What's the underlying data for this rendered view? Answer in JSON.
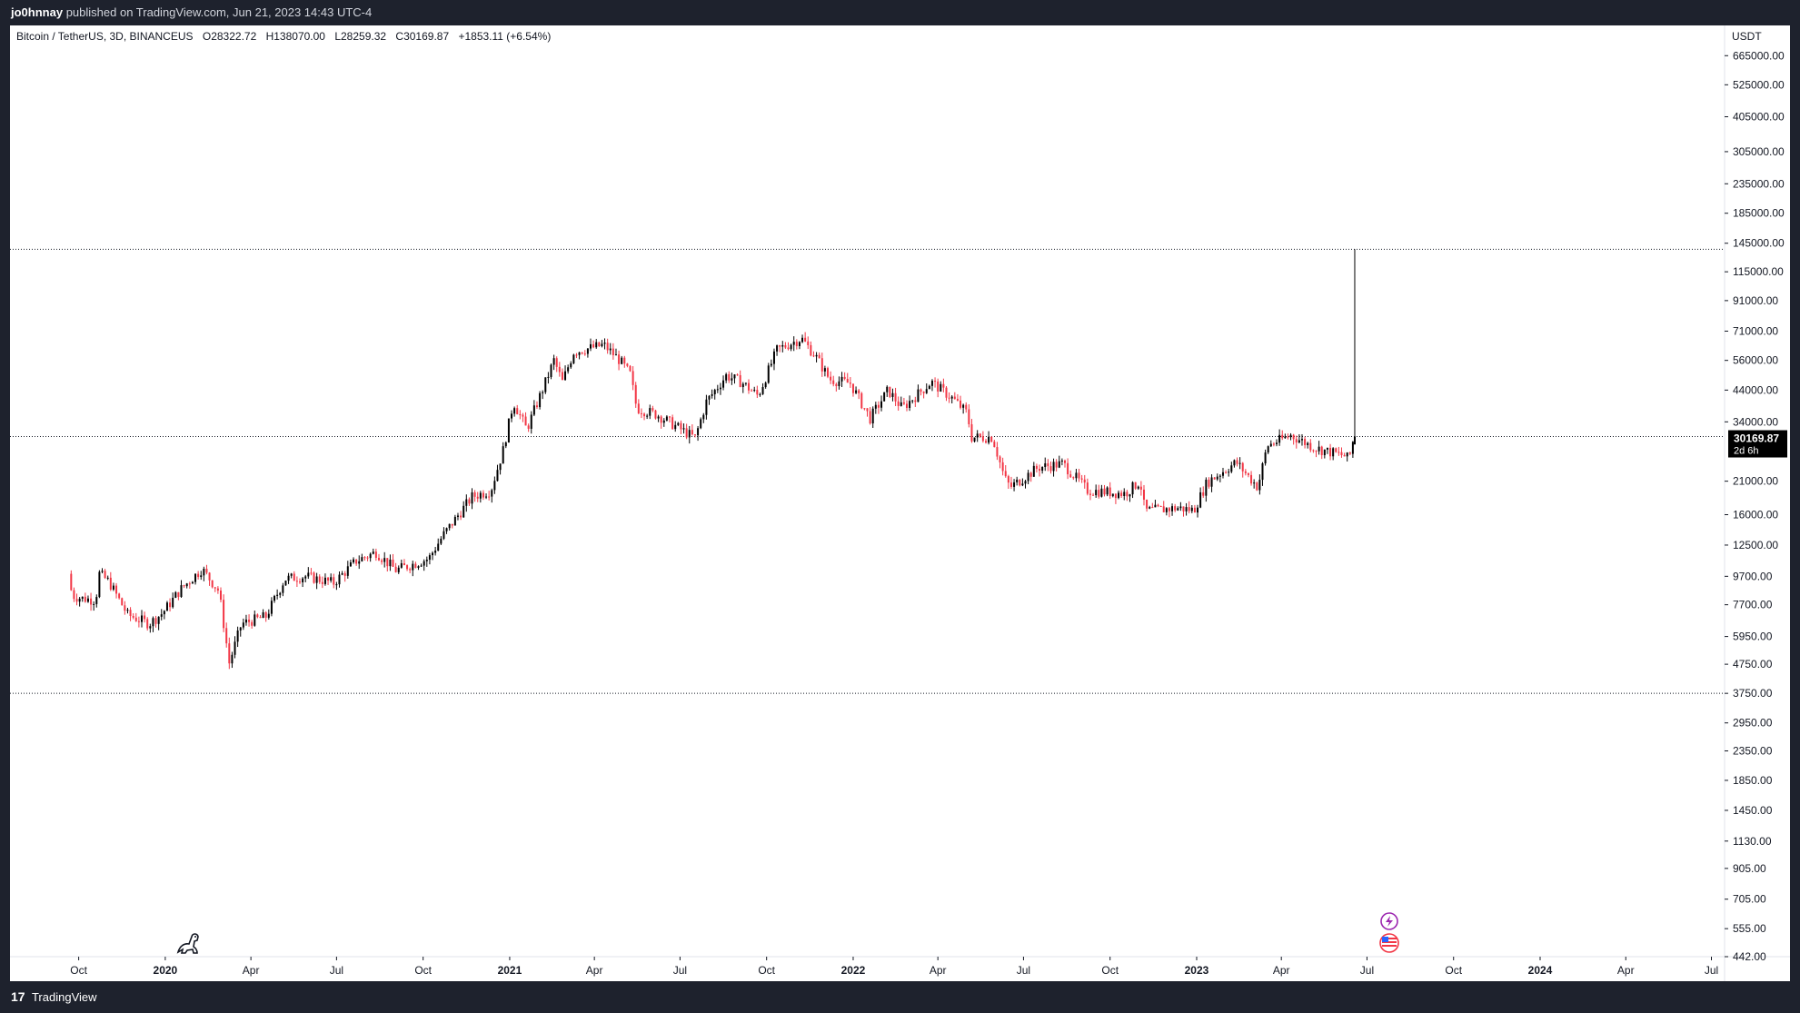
{
  "header": {
    "author": "jo0hnnay",
    "published_text": "published on TradingView.com, Jun 21, 2023 14:43 UTC-4"
  },
  "legend": {
    "symbol": "Bitcoin / TetherUS, 3D, BINANCEUS",
    "open": "O28322.72",
    "high": "H138070.00",
    "low": "L28259.32",
    "close": "C30169.87",
    "change": "+1853.11 (+6.54%)"
  },
  "price_axis": {
    "currency": "USDT",
    "last_price_label": "30169.87",
    "countdown": "2d 6h"
  },
  "footer": {
    "brand_mark": "17",
    "brand": "TradingView"
  },
  "colors": {
    "up": "#000000",
    "down": "#f23645",
    "last_price_bg": "#000000",
    "line": "#000000"
  },
  "chart_data": {
    "type": "candlestick",
    "scale": "log",
    "ylim": [
      442,
      850000
    ],
    "xlim": [
      "2019-07-20",
      "2024-07-15"
    ],
    "y_ticks": [
      665000,
      525000,
      405000,
      305000,
      235000,
      185000,
      145000,
      115000,
      91000,
      71000,
      56000,
      44000,
      34000,
      21000,
      16000,
      12500,
      9700,
      7700,
      5950,
      4750,
      3750,
      2950,
      2350,
      1850,
      1450,
      1130,
      905,
      705,
      555,
      442
    ],
    "x_ticks": [
      {
        "date": "2019-10-01",
        "label": "Oct",
        "bold": false
      },
      {
        "date": "2020-01-01",
        "label": "2020",
        "bold": true
      },
      {
        "date": "2020-04-01",
        "label": "Apr",
        "bold": false
      },
      {
        "date": "2020-07-01",
        "label": "Jul",
        "bold": false
      },
      {
        "date": "2020-10-01",
        "label": "Oct",
        "bold": false
      },
      {
        "date": "2021-01-01",
        "label": "2021",
        "bold": true
      },
      {
        "date": "2021-04-01",
        "label": "Apr",
        "bold": false
      },
      {
        "date": "2021-07-01",
        "label": "Jul",
        "bold": false
      },
      {
        "date": "2021-10-01",
        "label": "Oct",
        "bold": false
      },
      {
        "date": "2022-01-01",
        "label": "2022",
        "bold": true
      },
      {
        "date": "2022-04-01",
        "label": "Apr",
        "bold": false
      },
      {
        "date": "2022-07-01",
        "label": "Jul",
        "bold": false
      },
      {
        "date": "2022-10-01",
        "label": "Oct",
        "bold": false
      },
      {
        "date": "2023-01-01",
        "label": "2023",
        "bold": true
      },
      {
        "date": "2023-04-01",
        "label": "Apr",
        "bold": false
      },
      {
        "date": "2023-07-01",
        "label": "Jul",
        "bold": false
      },
      {
        "date": "2023-10-01",
        "label": "Oct",
        "bold": false
      },
      {
        "date": "2024-01-01",
        "label": "2024",
        "bold": true
      },
      {
        "date": "2024-04-01",
        "label": "Apr",
        "bold": false
      },
      {
        "date": "2024-07-01",
        "label": "Jul",
        "bold": false
      }
    ],
    "horizontal_lines": [
      138070,
      30169.87,
      3750
    ],
    "candle_interval_days": 3,
    "approx_close_path": [
      [
        "2019-09-23",
        9900
      ],
      [
        "2019-09-27",
        8300
      ],
      [
        "2019-10-08",
        8100
      ],
      [
        "2019-10-22",
        8000
      ],
      [
        "2019-10-26",
        9900
      ],
      [
        "2019-11-05",
        9300
      ],
      [
        "2019-11-25",
        7100
      ],
      [
        "2019-12-18",
        6600
      ],
      [
        "2020-01-01",
        7200
      ],
      [
        "2020-01-20",
        8700
      ],
      [
        "2020-02-12",
        10300
      ],
      [
        "2020-03-01",
        8600
      ],
      [
        "2020-03-12",
        4800
      ],
      [
        "2020-03-25",
        6600
      ],
      [
        "2020-04-20",
        7000
      ],
      [
        "2020-05-10",
        9500
      ],
      [
        "2020-06-01",
        9700
      ],
      [
        "2020-07-01",
        9200
      ],
      [
        "2020-07-25",
        11000
      ],
      [
        "2020-08-15",
        11800
      ],
      [
        "2020-09-05",
        10200
      ],
      [
        "2020-10-10",
        11200
      ],
      [
        "2020-10-25",
        13500
      ],
      [
        "2020-11-25",
        18500
      ],
      [
        "2020-12-15",
        19500
      ],
      [
        "2020-12-28",
        27000
      ],
      [
        "2021-01-08",
        40000
      ],
      [
        "2021-01-22",
        32000
      ],
      [
        "2021-02-10",
        46000
      ],
      [
        "2021-02-20",
        56000
      ],
      [
        "2021-03-01",
        47000
      ],
      [
        "2021-03-13",
        60000
      ],
      [
        "2021-04-14",
        63500
      ],
      [
        "2021-05-01",
        56000
      ],
      [
        "2021-05-12",
        50000
      ],
      [
        "2021-05-19",
        38000
      ],
      [
        "2021-06-10",
        36000
      ],
      [
        "2021-07-20",
        29800
      ],
      [
        "2021-08-01",
        40000
      ],
      [
        "2021-08-22",
        49500
      ],
      [
        "2021-09-07",
        47000
      ],
      [
        "2021-09-25",
        42000
      ],
      [
        "2021-10-15",
        61000
      ],
      [
        "2021-11-10",
        67000
      ],
      [
        "2021-11-25",
        58000
      ],
      [
        "2021-12-10",
        48000
      ],
      [
        "2022-01-01",
        46500
      ],
      [
        "2022-01-22",
        35000
      ],
      [
        "2022-02-10",
        44000
      ],
      [
        "2022-02-25",
        38000
      ],
      [
        "2022-03-28",
        47000
      ],
      [
        "2022-04-20",
        41000
      ],
      [
        "2022-05-05",
        36500
      ],
      [
        "2022-05-10",
        30000
      ],
      [
        "2022-06-01",
        30000
      ],
      [
        "2022-06-14",
        21500
      ],
      [
        "2022-06-20",
        20000
      ],
      [
        "2022-07-20",
        23500
      ],
      [
        "2022-08-15",
        24200
      ],
      [
        "2022-09-10",
        19500
      ],
      [
        "2022-10-20",
        19000
      ],
      [
        "2022-11-05",
        21000
      ],
      [
        "2022-11-10",
        16500
      ],
      [
        "2022-12-15",
        16900
      ],
      [
        "2023-01-01",
        16600
      ],
      [
        "2023-01-15",
        20800
      ],
      [
        "2023-02-15",
        24500
      ],
      [
        "2023-03-10",
        20000
      ],
      [
        "2023-03-20",
        28000
      ],
      [
        "2023-04-14",
        30500
      ],
      [
        "2023-05-10",
        27500
      ],
      [
        "2023-06-10",
        25800
      ],
      [
        "2023-06-15",
        25100
      ],
      [
        "2023-06-18",
        28322.72
      ],
      [
        "2023-06-21",
        30169.87
      ]
    ],
    "last_candle": {
      "date": "2023-06-18",
      "open": 28322.72,
      "high": 138070.0,
      "low": 28259.32,
      "close": 30169.87
    }
  }
}
